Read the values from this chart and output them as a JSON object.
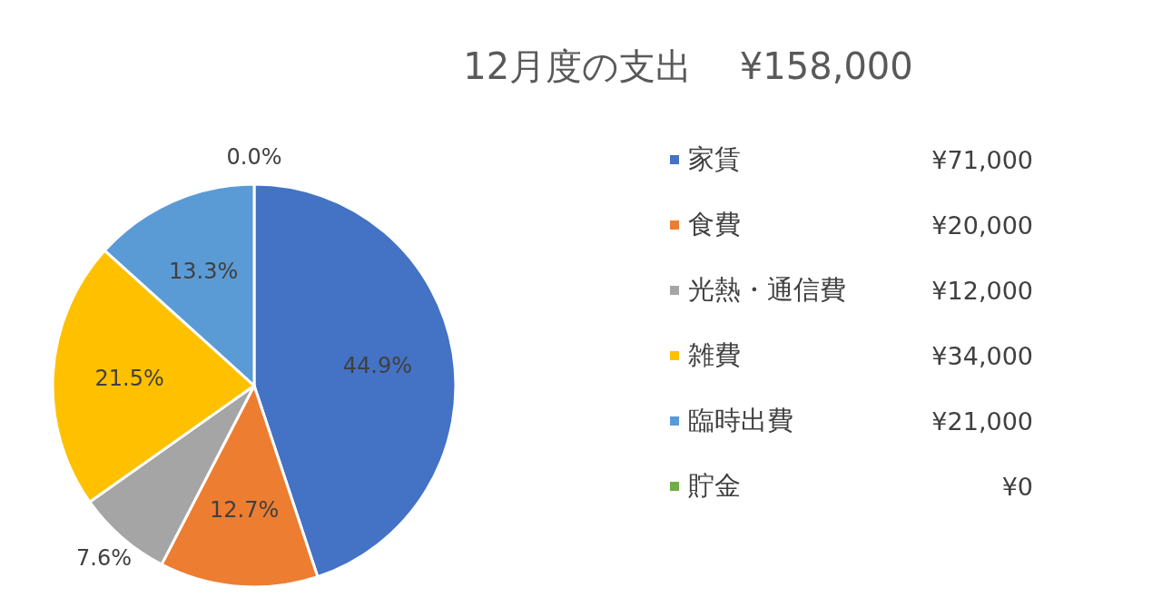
{
  "chart_data": {
    "type": "pie",
    "title": "12月度の支出　 ¥158,000",
    "categories": [
      "家賃",
      "食費",
      "光熱・通信費",
      "雑費",
      "臨時出費",
      "貯金"
    ],
    "values": [
      44.9,
      12.7,
      7.6,
      21.5,
      13.3,
      0
    ],
    "colors": [
      "#4472c4",
      "#ed7d31",
      "#a5a5a5",
      "#ffc000",
      "#5b9bd5",
      "#70ad47"
    ],
    "value_labels": [
      "44.9%",
      "12.7%",
      "7.6%",
      "21.5%",
      "13.3%",
      "0.0%"
    ],
    "annotations": [
      "¥71,000",
      "¥20,000",
      "¥12,000",
      "¥34,000",
      "¥21,000",
      "¥0"
    ],
    "legend": "right"
  }
}
